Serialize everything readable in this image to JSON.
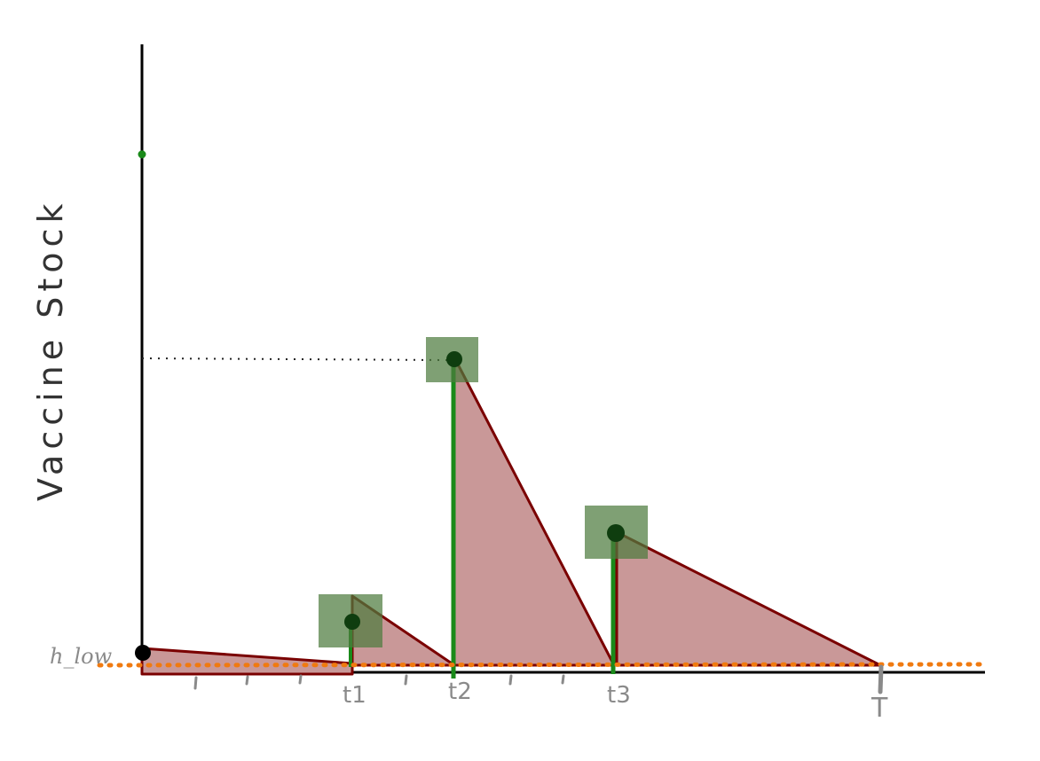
{
  "y_axis_label": "Vaccine Stock",
  "low_threshold_label": "h_low",
  "time_labels": [
    "t1",
    "t2",
    "t3",
    "T"
  ],
  "colors": {
    "axis": "#000000",
    "stock_fill": "#c99898",
    "stock_outline": "#7a0000",
    "delivery_box": "#5a8a4a",
    "delivery_line": "#1a8a1a",
    "threshold": "#f07a10",
    "label_gray": "#8a8a8a",
    "marker": "#0f3d0f"
  }
}
